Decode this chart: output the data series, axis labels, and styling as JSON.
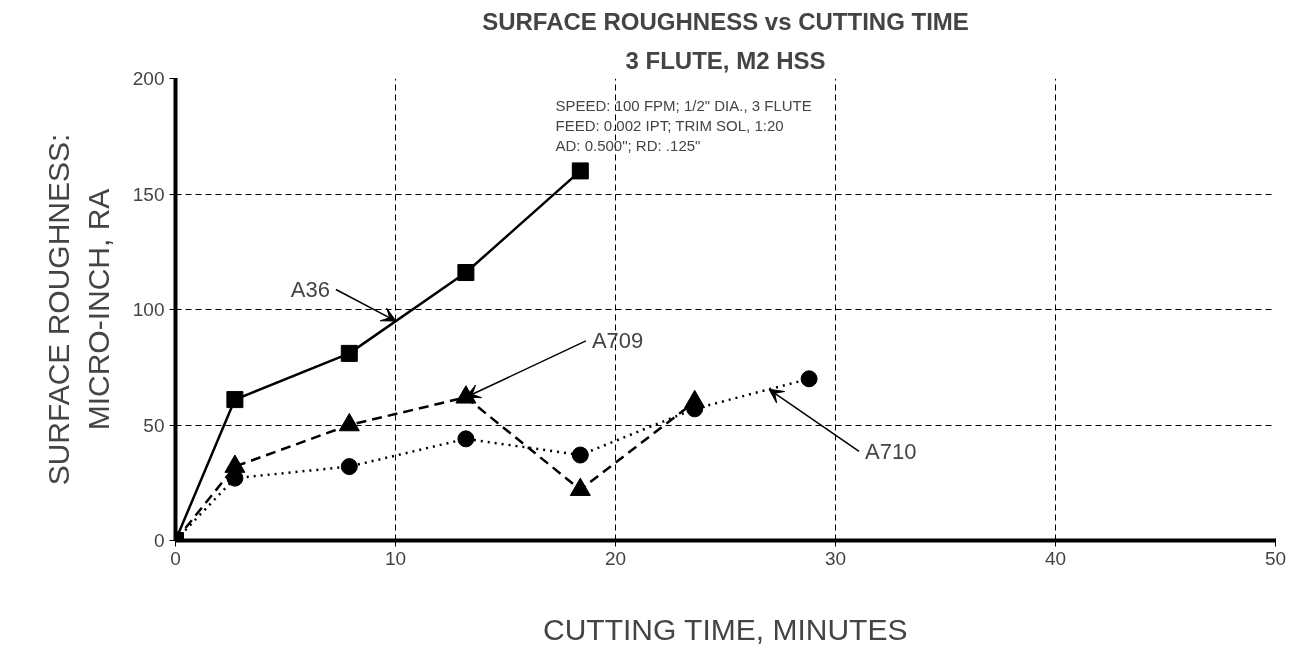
{
  "chart_data": {
    "type": "line",
    "title": "SURFACE ROUGHNESS vs CUTTING TIME",
    "subtitle": "3 FLUTE, M2 HSS",
    "xlabel": "CUTTING TIME, MINUTES",
    "ylabel": "SURFACE ROUGHNESS:\nMICRO-INCH, RA",
    "series": [
      {
        "name": "A36",
        "color": "#000000",
        "marker": "square",
        "line_style": "solid",
        "x": [
          0,
          2.7,
          7.9,
          13.2,
          18.4
        ],
        "values": [
          0,
          61,
          81,
          116,
          160
        ]
      },
      {
        "name": "A709",
        "color": "#000000",
        "marker": "triangle",
        "line_style": "dashed",
        "x": [
          0,
          2.7,
          7.9,
          13.2,
          18.4,
          23.6
        ],
        "values": [
          0,
          32,
          50,
          62,
          22,
          60
        ]
      },
      {
        "name": "A710",
        "color": "#000000",
        "marker": "circle",
        "line_style": "dotted",
        "x": [
          0,
          2.7,
          7.9,
          13.2,
          18.4,
          23.6,
          28.8
        ],
        "values": [
          0,
          27,
          32,
          44,
          37,
          57,
          70
        ]
      }
    ],
    "annotations": [
      "SPEED: 100 FPM; 1/2\" DIA., 3 FLUTE\nFEED: 0.002 IPT; TRIM SOL, 1:20\nAD: 0.500\"; RD: .125\""
    ],
    "xlim": [
      0,
      50
    ],
    "ylim": [
      0,
      200
    ],
    "xticks": [
      0,
      10,
      20,
      30,
      40,
      50
    ],
    "yticks": [
      0,
      50,
      100,
      150,
      200
    ],
    "grid": true
  }
}
